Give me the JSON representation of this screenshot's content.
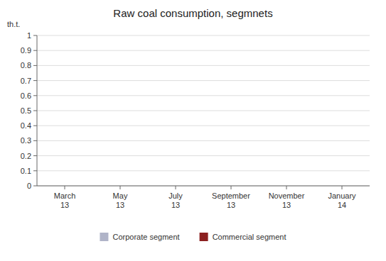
{
  "chart_data": {
    "type": "bar",
    "title": "Raw coal consumption, segmnets",
    "ylabel": "th.t.",
    "categories": [
      "March\n13",
      "May\n13",
      "July\n13",
      "September\n13",
      "November\n13",
      "January\n14"
    ],
    "series": [
      {
        "name": "Corporate segment",
        "color": "#b0b4c8",
        "values": [
          null,
          null,
          null,
          null,
          null,
          null
        ]
      },
      {
        "name": "Commercial segment",
        "color": "#8b2020",
        "values": [
          null,
          null,
          null,
          null,
          null,
          null
        ]
      }
    ],
    "ylim": [
      0,
      1
    ],
    "yticks": [
      0,
      0.1,
      0.2,
      0.3,
      0.4,
      0.5,
      0.6,
      0.7,
      0.8,
      0.9,
      1
    ],
    "grid": true,
    "legend": "bottom"
  }
}
